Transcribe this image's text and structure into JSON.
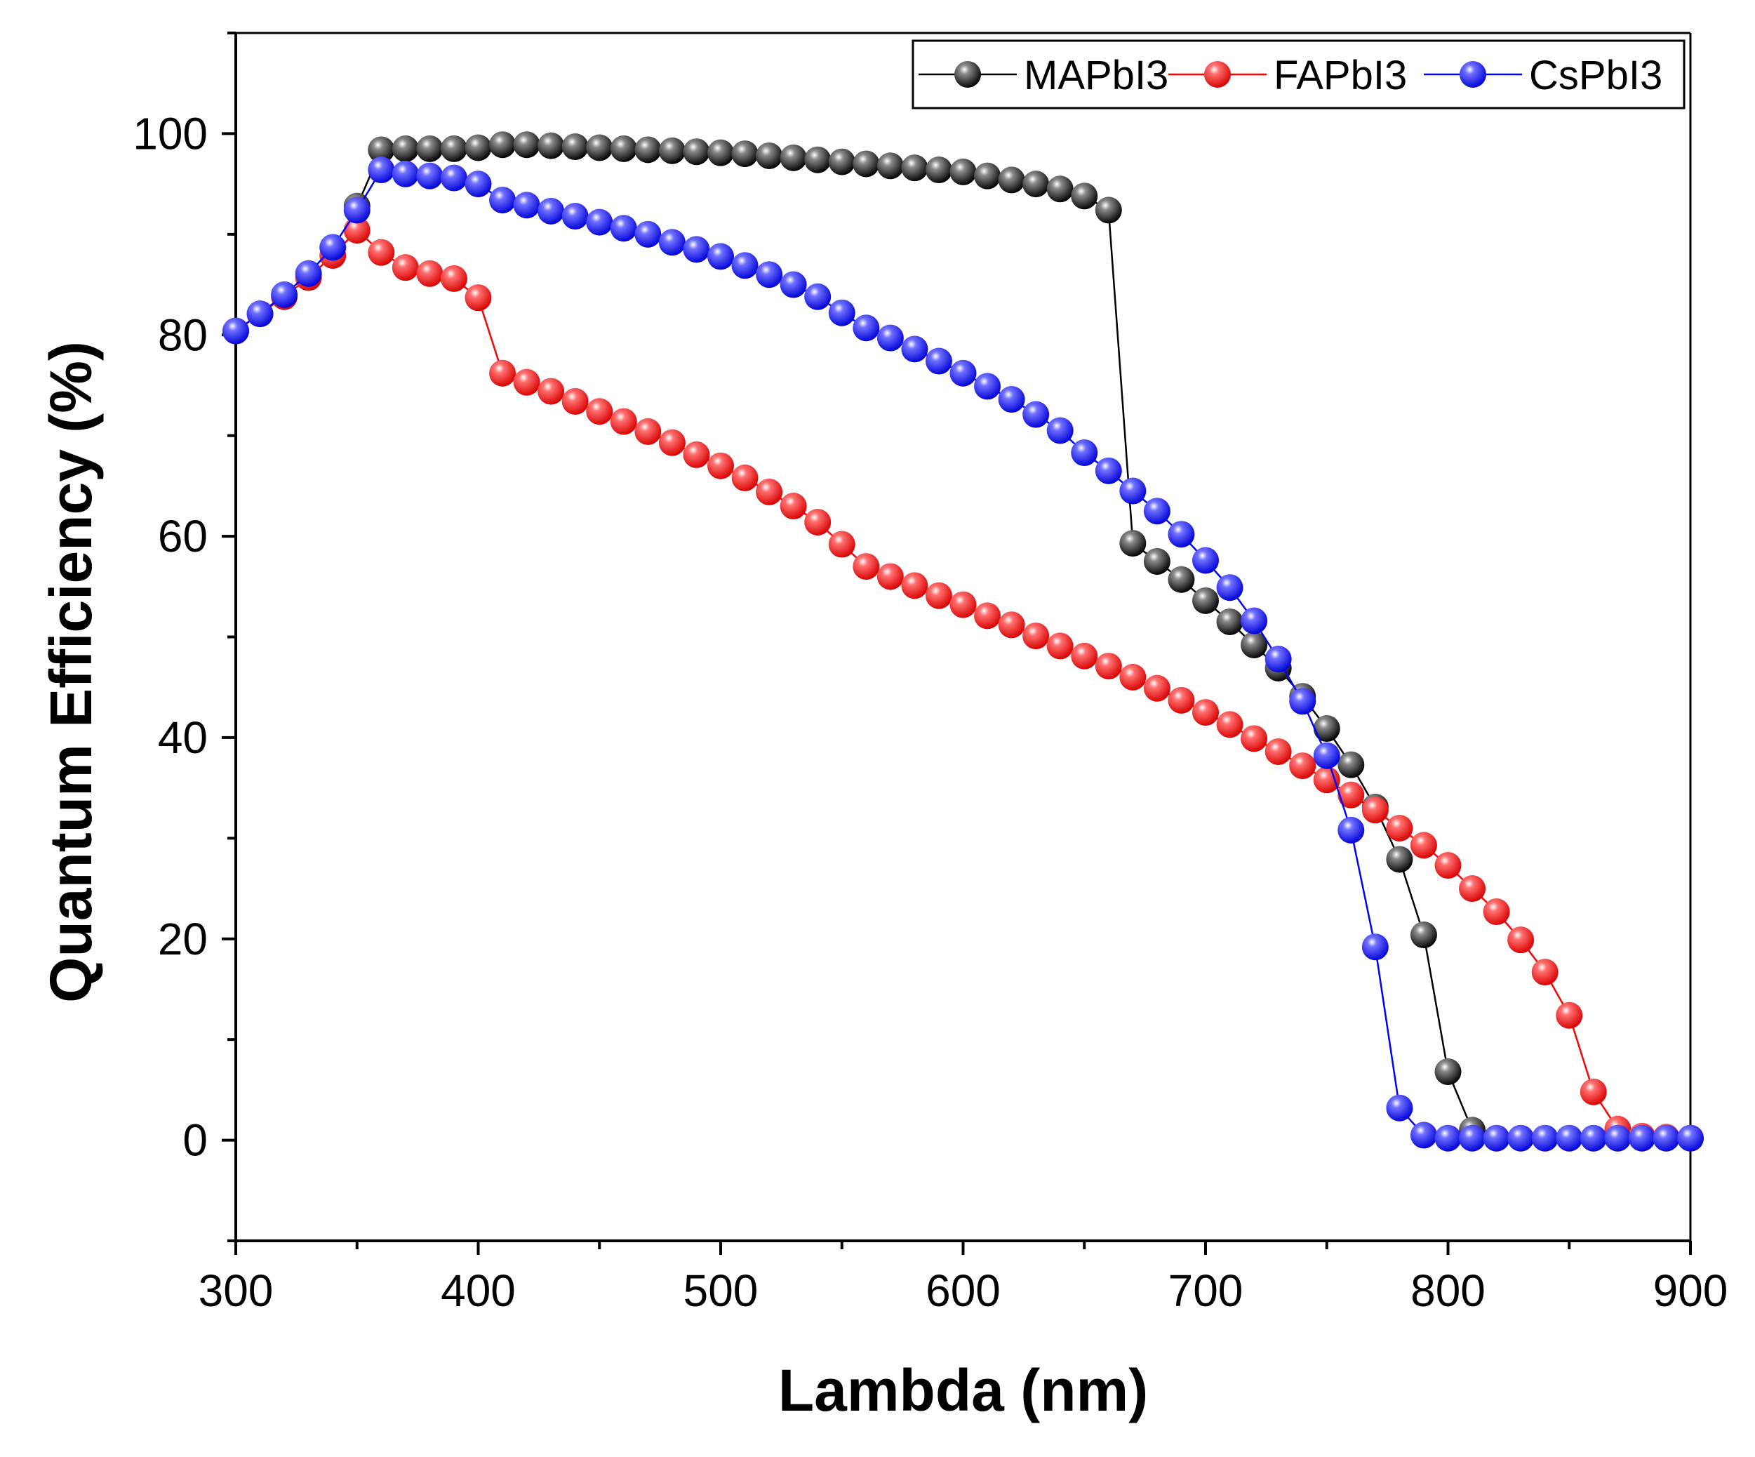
{
  "chart_data": {
    "type": "line",
    "title": "",
    "xlabel": "Lambda (nm)",
    "ylabel": "Quantum Efficiency (%)",
    "xlim": [
      300,
      900
    ],
    "ylim": [
      -10,
      110
    ],
    "xticks": [
      300,
      400,
      500,
      600,
      700,
      800,
      900
    ],
    "yticks": [
      0,
      20,
      40,
      60,
      80,
      100
    ],
    "grid": false,
    "legend_position": "top-right",
    "series": [
      {
        "name": "MAPbI3",
        "color": "#000000",
        "x": [
          350,
          360,
          370,
          380,
          390,
          400,
          410,
          420,
          430,
          440,
          450,
          460,
          470,
          480,
          490,
          500,
          510,
          520,
          530,
          540,
          550,
          560,
          570,
          580,
          590,
          600,
          610,
          620,
          630,
          640,
          650,
          660,
          670,
          680,
          690,
          700,
          710,
          720,
          730,
          740,
          750,
          760,
          770,
          780,
          790,
          800,
          810
        ],
        "values": [
          92.8,
          98.4,
          98.5,
          98.5,
          98.5,
          98.6,
          98.9,
          98.9,
          98.8,
          98.7,
          98.6,
          98.5,
          98.4,
          98.3,
          98.2,
          98.1,
          98.0,
          97.8,
          97.6,
          97.4,
          97.2,
          97.0,
          96.8,
          96.6,
          96.4,
          96.2,
          95.8,
          95.4,
          95.0,
          94.5,
          93.8,
          92.4,
          59.3,
          57.5,
          55.7,
          53.6,
          51.5,
          49.2,
          46.9,
          44.1,
          40.9,
          37.3,
          33.1,
          27.9,
          20.4,
          6.8,
          1.0
        ]
      },
      {
        "name": "FAPbI3",
        "color": "#ff0000",
        "x": [
          300,
          310,
          320,
          330,
          340,
          350,
          360,
          370,
          380,
          390,
          400,
          410,
          420,
          430,
          440,
          450,
          460,
          470,
          480,
          490,
          500,
          510,
          520,
          530,
          540,
          550,
          560,
          570,
          580,
          590,
          600,
          610,
          620,
          630,
          640,
          650,
          660,
          670,
          680,
          690,
          700,
          710,
          720,
          730,
          740,
          750,
          760,
          770,
          780,
          790,
          800,
          810,
          820,
          830,
          840,
          850,
          860,
          870,
          880,
          890,
          900
        ],
        "values": [
          80.4,
          82.1,
          83.8,
          85.7,
          87.9,
          90.4,
          88.2,
          86.7,
          86.1,
          85.6,
          83.7,
          76.2,
          75.3,
          74.4,
          73.4,
          72.4,
          71.4,
          70.4,
          69.3,
          68.1,
          67.0,
          65.8,
          64.4,
          63.0,
          61.4,
          59.2,
          57.0,
          56.0,
          55.1,
          54.1,
          53.2,
          52.1,
          51.2,
          50.1,
          49.1,
          48.1,
          47.1,
          46.0,
          44.9,
          43.7,
          42.5,
          41.3,
          39.9,
          38.6,
          37.2,
          35.8,
          34.3,
          32.8,
          31.0,
          29.3,
          27.3,
          25.0,
          22.7,
          19.9,
          16.7,
          12.4,
          4.8,
          1.1,
          0.4,
          0.3,
          0.2
        ]
      },
      {
        "name": "CsPbI3",
        "color": "#0000ff",
        "x": [
          300,
          310,
          320,
          330,
          340,
          350,
          360,
          370,
          380,
          390,
          400,
          410,
          420,
          430,
          440,
          450,
          460,
          470,
          480,
          490,
          500,
          510,
          520,
          530,
          540,
          550,
          560,
          570,
          580,
          590,
          600,
          610,
          620,
          630,
          640,
          650,
          660,
          670,
          680,
          690,
          700,
          710,
          720,
          730,
          740,
          750,
          760,
          770,
          780,
          790,
          800,
          810,
          820,
          830,
          840,
          850,
          860,
          870,
          880,
          890,
          900
        ],
        "values": [
          80.4,
          82.1,
          84.0,
          86.1,
          88.7,
          92.4,
          96.4,
          96.0,
          95.8,
          95.6,
          95.0,
          93.4,
          92.9,
          92.3,
          91.8,
          91.2,
          90.6,
          90.0,
          89.2,
          88.5,
          87.8,
          86.9,
          86.0,
          85.0,
          83.8,
          82.2,
          80.7,
          79.7,
          78.6,
          77.4,
          76.2,
          74.9,
          73.6,
          72.1,
          70.5,
          68.3,
          66.5,
          64.5,
          62.5,
          60.2,
          57.6,
          54.9,
          51.6,
          47.8,
          43.6,
          38.2,
          30.8,
          19.2,
          3.2,
          0.5,
          0.2,
          0.2,
          0.2,
          0.2,
          0.2,
          0.2,
          0.2,
          0.2,
          0.2,
          0.2,
          0.2
        ]
      }
    ]
  }
}
